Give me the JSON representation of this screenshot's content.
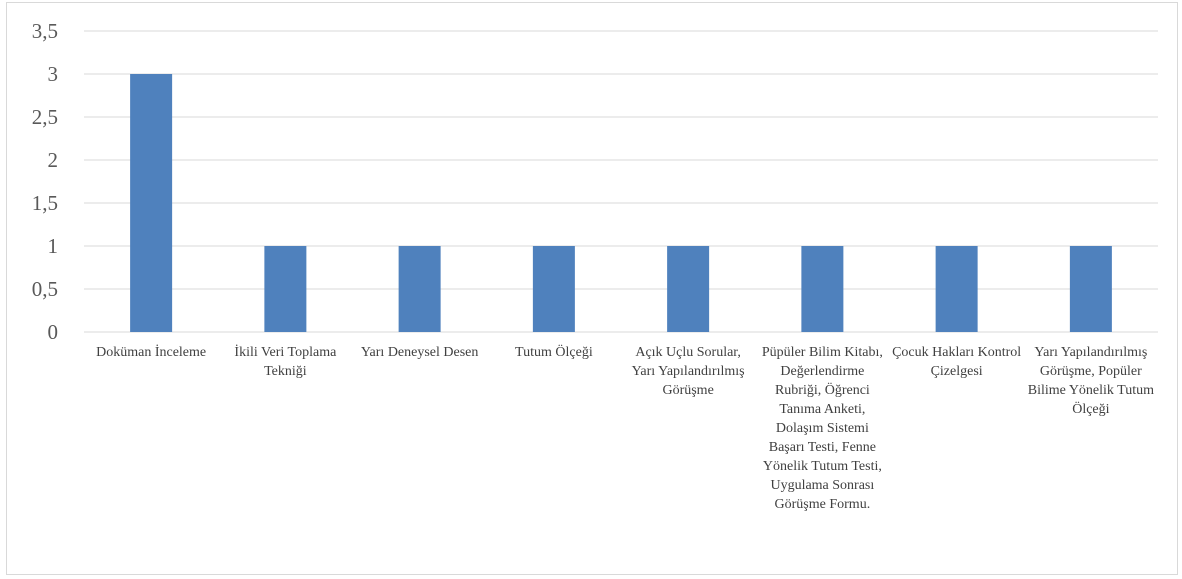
{
  "chart_data": {
    "type": "bar",
    "categories": [
      "Doküman İnceleme",
      "İkili Veri Toplama Tekniği",
      "Yarı Deneysel Desen",
      "Tutum Ölçeği",
      "Açık Uçlu Sorular, Yarı Yapılandırılmış Görüşme",
      "Püpüler Bilim Kitabı, Değerlendirme Rubriği, Öğrenci Tanıma Anketi, Dolaşım Sistemi Başarı Testi, Fenne Yönelik Tutum Testi, Uygulama Sonrası Görüşme Formu.",
      "Çocuk Hakları Kontrol Çizelgesi",
      "Yarı Yapılandırılmış Görüşme, Popüler Bilime Yönelik Tutum Ölçeği"
    ],
    "values": [
      3,
      1,
      1,
      1,
      1,
      1,
      1,
      1
    ],
    "ylim": [
      0,
      3.5
    ],
    "yticks": [
      "0",
      "0,5",
      "1",
      "1,5",
      "2",
      "2,5",
      "3",
      "3,5"
    ],
    "grid": true,
    "bar_color": "#4f81bd",
    "title": "",
    "xlabel": "",
    "ylabel": ""
  }
}
